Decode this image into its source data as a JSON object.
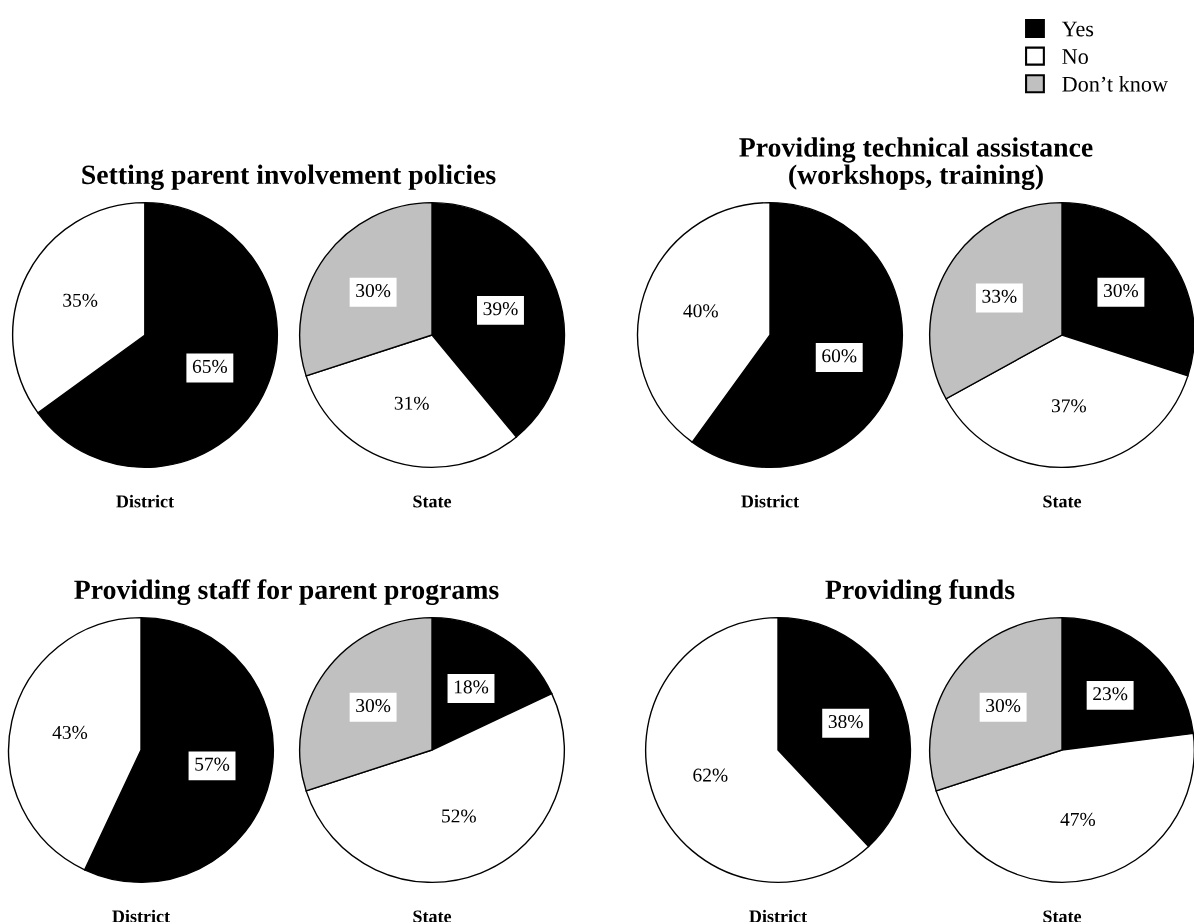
{
  "chart_data": [
    {
      "type": "pie",
      "title": "Setting parent involvement policies",
      "xlabel": "District",
      "categories": [
        "Yes",
        "No",
        "Don’t know"
      ],
      "values": [
        65,
        35,
        0
      ],
      "value_labels": [
        "65%",
        "35%",
        null
      ],
      "colors": [
        "#000000",
        "#ffffff",
        "#c0c0c0"
      ],
      "legend": "top right"
    },
    {
      "type": "pie",
      "xlabel": "State",
      "categories": [
        null,
        null,
        null
      ],
      "values": [
        39,
        31,
        30
      ],
      "value_labels": [
        "39%",
        "31%",
        "30%"
      ],
      "colors": [
        "#000000",
        "#ffffff",
        "#c0c0c0"
      ]
    },
    {
      "type": "pie",
      "title": "Providing technical assistance\n(workshops, training)",
      "xlabel": "District",
      "categories": [
        null,
        null
      ],
      "values": [
        60,
        40
      ],
      "value_labels": [
        "60%",
        "40%"
      ],
      "colors": [
        "#000000",
        "#ffffff"
      ]
    },
    {
      "type": "pie",
      "xlabel": "State",
      "categories": [
        null,
        null,
        null
      ],
      "values": [
        30,
        37,
        33
      ],
      "value_labels": [
        "30%",
        "37%",
        "33%"
      ],
      "colors": [
        "#000000",
        "#ffffff",
        "#c0c0c0"
      ]
    },
    {
      "type": "pie",
      "title": "Providing staff for parent programs",
      "xlabel": "District",
      "categories": [
        null,
        null
      ],
      "values": [
        57,
        43
      ],
      "value_labels": [
        "57%",
        "43%"
      ],
      "colors": [
        "#000000",
        "#ffffff"
      ]
    },
    {
      "type": "pie",
      "xlabel": "State",
      "categories": [
        null,
        null,
        null
      ],
      "values": [
        18,
        52,
        30
      ],
      "value_labels": [
        "18%",
        "52%",
        "30%"
      ],
      "colors": [
        "#000000",
        "#ffffff",
        "#c0c0c0"
      ]
    },
    {
      "type": "pie",
      "title": "Providing funds",
      "xlabel": "District",
      "categories": [
        null,
        null
      ],
      "values": [
        38,
        62
      ],
      "value_labels": [
        "38%",
        "62%"
      ],
      "colors": [
        "#000000",
        "#ffffff"
      ]
    },
    {
      "type": "pie",
      "xlabel": "State",
      "categories": [
        null,
        null,
        null
      ],
      "values": [
        23,
        47,
        30
      ],
      "value_labels": [
        "23%",
        "47%",
        "30%"
      ],
      "colors": [
        "#000000",
        "#ffffff",
        "#c0c0c0"
      ]
    }
  ]
}
